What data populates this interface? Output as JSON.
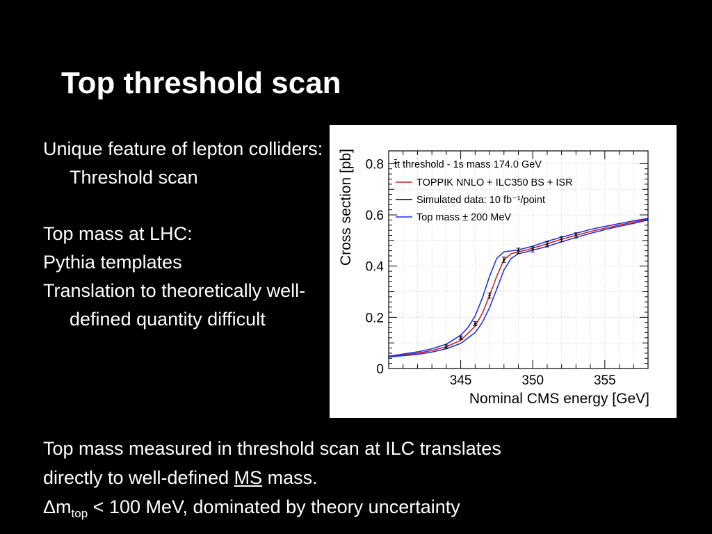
{
  "slide": {
    "title": "Top threshold scan",
    "bullets": [
      "Unique feature of lepton colliders: Threshold scan",
      "Top mass at LHC:",
      "Pythia templates",
      "Translation to theoretically well-defined quantity difficult"
    ],
    "bottom": {
      "line1": "Top mass measured in threshold scan at ILC translates",
      "line2_pre": "directly to well-defined ",
      "line2_ms": "MS",
      "line2_post": " mass.",
      "line3_delta": "Δm",
      "line3_sub": "top",
      "line3_post": " < 100 MeV, dominated by theory uncertainty"
    }
  },
  "colors": {
    "background": "#000000",
    "text": "#ffffff",
    "red": "#cc2222",
    "blue": "#2233dd",
    "data": "#000000"
  },
  "chart_data": {
    "type": "line",
    "xlabel": "Nominal CMS energy [GeV]",
    "ylabel": "Cross section [pb]",
    "xlim": [
      340,
      358
    ],
    "ylim": [
      0,
      0.85
    ],
    "xticks": [
      345,
      350,
      355
    ],
    "yticks": [
      0,
      0.2,
      0.4,
      0.6,
      0.8
    ],
    "ytick_labels": [
      "0",
      "0.2",
      "0.4",
      "0.6",
      "0.8"
    ],
    "legend_header": "t̄t threshold - 1s mass 174.0 GeV",
    "legend": [
      {
        "label": "TOPPIK NNLO + ILC350 BS + ISR",
        "color": "#cc2222"
      },
      {
        "label": "Simulated data: 10 fb⁻¹/point",
        "color": "#000000"
      },
      {
        "label": "Top mass ± 200 MeV",
        "color": "#2233dd"
      }
    ],
    "legend_position": "top-left",
    "series": [
      {
        "name": "TOPPIK NNLO + ILC350 BS + ISR",
        "color": "#cc2222",
        "x": [
          340,
          342,
          343,
          344,
          345,
          346,
          346.5,
          347,
          347.5,
          348,
          348.5,
          349,
          349.5,
          350,
          351,
          352,
          353,
          354,
          355,
          356,
          357,
          358
        ],
        "y": [
          0.045,
          0.06,
          0.07,
          0.085,
          0.11,
          0.165,
          0.215,
          0.285,
          0.36,
          0.425,
          0.448,
          0.456,
          0.462,
          0.47,
          0.487,
          0.505,
          0.52,
          0.535,
          0.548,
          0.56,
          0.572,
          0.583
        ]
      },
      {
        "name": "Top mass +200 MeV",
        "color": "#2233dd",
        "x": [
          340,
          342,
          343,
          344,
          345,
          346,
          346.5,
          347,
          347.5,
          348,
          348.5,
          349,
          349.5,
          350,
          351,
          352,
          353,
          354,
          355,
          356,
          357,
          358
        ],
        "y": [
          0.045,
          0.055,
          0.064,
          0.077,
          0.098,
          0.14,
          0.18,
          0.238,
          0.31,
          0.385,
          0.43,
          0.448,
          0.455,
          0.462,
          0.477,
          0.495,
          0.512,
          0.528,
          0.542,
          0.555,
          0.567,
          0.58
        ]
      },
      {
        "name": "Top mass -200 MeV",
        "color": "#2233dd",
        "x": [
          340,
          342,
          343,
          344,
          345,
          345.5,
          346,
          346.5,
          347,
          347.5,
          348,
          349,
          350,
          351,
          352,
          353,
          354,
          355,
          356,
          357,
          358
        ],
        "y": [
          0.048,
          0.065,
          0.077,
          0.095,
          0.13,
          0.16,
          0.205,
          0.275,
          0.36,
          0.43,
          0.456,
          0.463,
          0.478,
          0.497,
          0.513,
          0.528,
          0.543,
          0.555,
          0.566,
          0.577,
          0.586
        ]
      }
    ],
    "data_points": {
      "name": "Simulated data: 10 fb⁻¹/point",
      "x": [
        344,
        345,
        346,
        347,
        348,
        349,
        350,
        351,
        352,
        353
      ],
      "y": [
        0.085,
        0.12,
        0.175,
        0.285,
        0.425,
        0.46,
        0.465,
        0.485,
        0.505,
        0.52
      ],
      "err": [
        0.007,
        0.007,
        0.008,
        0.01,
        0.01,
        0.01,
        0.01,
        0.01,
        0.01,
        0.01
      ]
    }
  }
}
